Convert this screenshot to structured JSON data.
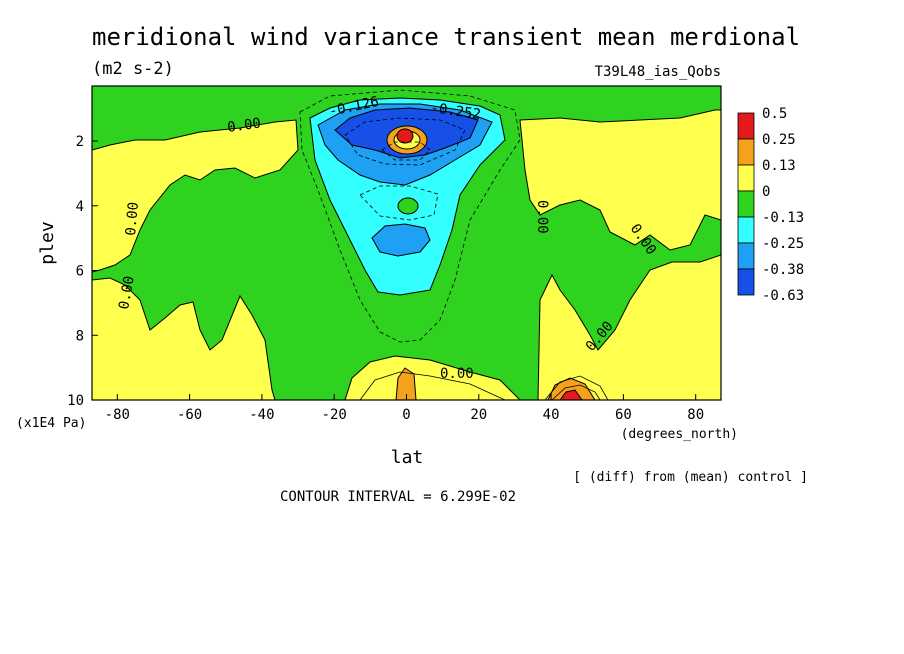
{
  "chart_data": {
    "type": "heatmap",
    "title": "meridional wind variance transient mean merdional",
    "units": "(m2 s-2)",
    "experiment": "T39L48_ias_Qobs",
    "xlabel": "lat",
    "xunit": "(degrees_north)",
    "ylabel": "plev",
    "yunit": "(x1E4 Pa)",
    "xlim": [
      -87,
      87
    ],
    "ylim": [
      10,
      0.3
    ],
    "x_ticks": [
      "-80",
      "-60",
      "-40",
      "-20",
      "0",
      "20",
      "40",
      "60",
      "80"
    ],
    "y_ticks": [
      "2",
      "4",
      "6",
      "8",
      "10"
    ],
    "footer_note": "[ (diff) from (mean) control ]",
    "contour_interval": "CONTOUR INTERVAL = 6.299E-02",
    "contour_labels": [
      "0.00",
      "0.00",
      "0.00",
      "0.00",
      "0.00",
      "0.00",
      "0.00",
      "-0.126",
      "-0.252"
    ],
    "colorbar": {
      "labels": [
        "0.5",
        "0.25",
        "0.13",
        "0",
        "-0.13",
        "-0.25",
        "-0.38",
        "-0.63"
      ],
      "colors": [
        "#e31a1c",
        "#f4a21b",
        "#ffff4d",
        "#2fd21f",
        "#33ffff",
        "#1ea0f4",
        "#1650e6"
      ]
    },
    "colors": {
      "positive_low": "#ffff4d",
      "positive_mid": "#f4a21b",
      "positive_high": "#e31a1c",
      "zero_band": "#2fd21f",
      "neg_low": "#33ffff",
      "neg_mid": "#1ea0f4",
      "neg_high": "#1650e6"
    }
  }
}
